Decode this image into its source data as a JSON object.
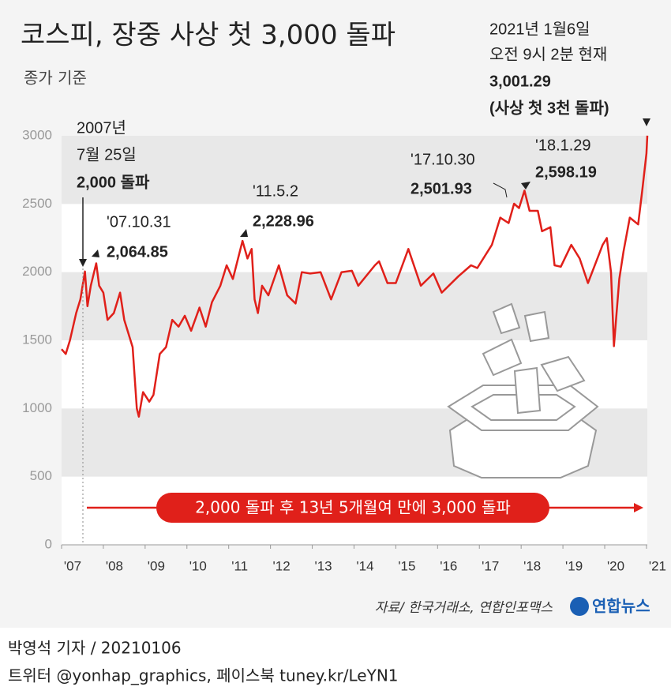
{
  "chart_data": {
    "type": "line",
    "title": "코스피, 장중 사상 첫 3,000 돌파",
    "subtitle": "종가 기준",
    "color": "#e0201a",
    "x": [
      2007.0,
      2007.1,
      2007.2,
      2007.35,
      2007.45,
      2007.56,
      2007.62,
      2007.7,
      2007.83,
      2007.9,
      2008.0,
      2008.1,
      2008.25,
      2008.4,
      2008.5,
      2008.6,
      2008.7,
      2008.8,
      2008.85,
      2008.95,
      2009.1,
      2009.2,
      2009.35,
      2009.5,
      2009.65,
      2009.8,
      2009.95,
      2010.1,
      2010.3,
      2010.45,
      2010.6,
      2010.8,
      2010.95,
      2011.1,
      2011.33,
      2011.45,
      2011.55,
      2011.62,
      2011.7,
      2011.8,
      2011.95,
      2012.2,
      2012.4,
      2012.6,
      2012.75,
      2012.95,
      2013.2,
      2013.45,
      2013.7,
      2013.95,
      2014.1,
      2014.5,
      2014.6,
      2014.8,
      2015.0,
      2015.3,
      2015.6,
      2015.9,
      2016.1,
      2016.5,
      2016.8,
      2016.95,
      2017.3,
      2017.5,
      2017.7,
      2017.83,
      2017.95,
      2018.08,
      2018.2,
      2018.4,
      2018.5,
      2018.7,
      2018.8,
      2018.95,
      2019.2,
      2019.4,
      2019.6,
      2019.8,
      2019.95,
      2020.05,
      2020.15,
      2020.22,
      2020.35,
      2020.45,
      2020.6,
      2020.8,
      2020.9,
      2021.0,
      2021.02
    ],
    "values": [
      1435,
      1400,
      1500,
      1700,
      1800,
      2005,
      1750,
      1900,
      2064.85,
      1900,
      1850,
      1650,
      1700,
      1850,
      1650,
      1550,
      1450,
      1000,
      940,
      1120,
      1050,
      1100,
      1400,
      1450,
      1650,
      1600,
      1680,
      1570,
      1740,
      1600,
      1780,
      1900,
      2050,
      1950,
      2228.96,
      2100,
      2170,
      1800,
      1700,
      1900,
      1830,
      2050,
      1830,
      1770,
      2000,
      1990,
      2000,
      1800,
      2000,
      2010,
      1900,
      2050,
      2080,
      1920,
      1920,
      2170,
      1900,
      1990,
      1850,
      1970,
      2050,
      2030,
      2200,
      2400,
      2360,
      2501.93,
      2470,
      2598.19,
      2450,
      2450,
      2300,
      2330,
      2050,
      2040,
      2200,
      2100,
      1920,
      2080,
      2200,
      2250,
      2000,
      1457,
      1950,
      2150,
      2400,
      2350,
      2600,
      2870,
      3001.29
    ],
    "xlim": [
      2007,
      2021.02
    ],
    "xticks": [
      {
        "value": 2007,
        "label": "'07"
      },
      {
        "value": 2008,
        "label": "'08"
      },
      {
        "value": 2009,
        "label": "'09"
      },
      {
        "value": 2010,
        "label": "'10"
      },
      {
        "value": 2011,
        "label": "'11"
      },
      {
        "value": 2012,
        "label": "'12"
      },
      {
        "value": 2013,
        "label": "'13"
      },
      {
        "value": 2014,
        "label": "'14"
      },
      {
        "value": 2015,
        "label": "'15"
      },
      {
        "value": 2016,
        "label": "'16"
      },
      {
        "value": 2017,
        "label": "'17"
      },
      {
        "value": 2018,
        "label": "'18"
      },
      {
        "value": 2019,
        "label": "'19"
      },
      {
        "value": 2020,
        "label": "'20"
      },
      {
        "value": 2021,
        "label": "'21"
      }
    ],
    "ylim": [
      0,
      3000
    ],
    "yticks": [
      0,
      500,
      1000,
      1500,
      2000,
      2500,
      3000
    ],
    "bands": true,
    "annotations": [
      {
        "lines": [
          "2021년 1월6일",
          "오전 9시 2분 현재",
          "3,001.29",
          "(사상 첫 3천 돌파)"
        ]
      },
      {
        "lines": [
          "2007년",
          "7월 25일",
          "2,000 돌파"
        ]
      },
      {
        "lines": [
          "'07.10.31",
          "2,064.85"
        ]
      },
      {
        "lines": [
          "'11.5.2",
          "2,228.96"
        ]
      },
      {
        "lines": [
          "'17.10.30",
          "2,501.93"
        ]
      },
      {
        "lines": [
          "'18.1.29",
          "2,598.19"
        ]
      }
    ],
    "banner": "2,000 돌파 후 13년 5개월여 만에 3,000 돌파",
    "source": "자료/ 한국거래소, 연합인포맥스",
    "logo": "연합뉴스",
    "byline": "박영석 기자 /  20210106",
    "social": "트위터 @yonhap_graphics, 페이스북 tuney.kr/LeYN1"
  }
}
